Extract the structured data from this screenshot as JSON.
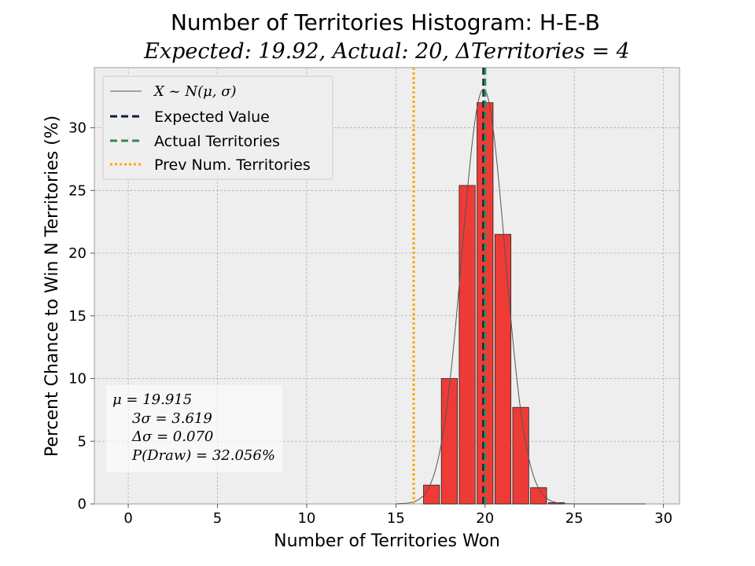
{
  "chart_data": {
    "type": "bar",
    "title": "Number of Territories Histogram: H-E-B",
    "subtitle": "Expected: 19.92, Actual: 20, ΔTerritories = 4",
    "xlabel": "Number of Territories Won",
    "ylabel": "Percent Chance to Win N Territories (%)",
    "xlim": [
      -1.9,
      30.9
    ],
    "ylim": [
      0,
      34.8
    ],
    "xticks": [
      0,
      5,
      10,
      15,
      20,
      25,
      30
    ],
    "yticks": [
      0,
      5,
      10,
      15,
      20,
      25,
      30
    ],
    "grid": true,
    "legend_position": "top-left",
    "bars": [
      {
        "x": 17,
        "value": 1.5
      },
      {
        "x": 18,
        "value": 10.0
      },
      {
        "x": 19,
        "value": 25.4
      },
      {
        "x": 20,
        "value": 32.0
      },
      {
        "x": 21,
        "value": 21.5
      },
      {
        "x": 22,
        "value": 7.7
      },
      {
        "x": 23,
        "value": 1.3
      },
      {
        "x": 24,
        "value": 0.1
      }
    ],
    "bar_color": "#ee3b36",
    "normal_curve": {
      "mu": 19.915,
      "sigma": 1.2063,
      "peak": 33.07,
      "label": "X ~ N(μ, σ)"
    },
    "expected_value": {
      "x": 19.915,
      "label": "Expected Value",
      "color": "#0d1b3f"
    },
    "actual_territories": {
      "x": 20,
      "label": "Actual Territories",
      "color": "#2e8b57"
    },
    "prev_territories": {
      "x": 16,
      "label": "Prev Num. Territories",
      "color": "#ffa500"
    },
    "stats": [
      "μ = 19.915",
      "3σ = 3.619",
      "Δσ = 0.070",
      "P(Draw) = 32.056%"
    ]
  }
}
